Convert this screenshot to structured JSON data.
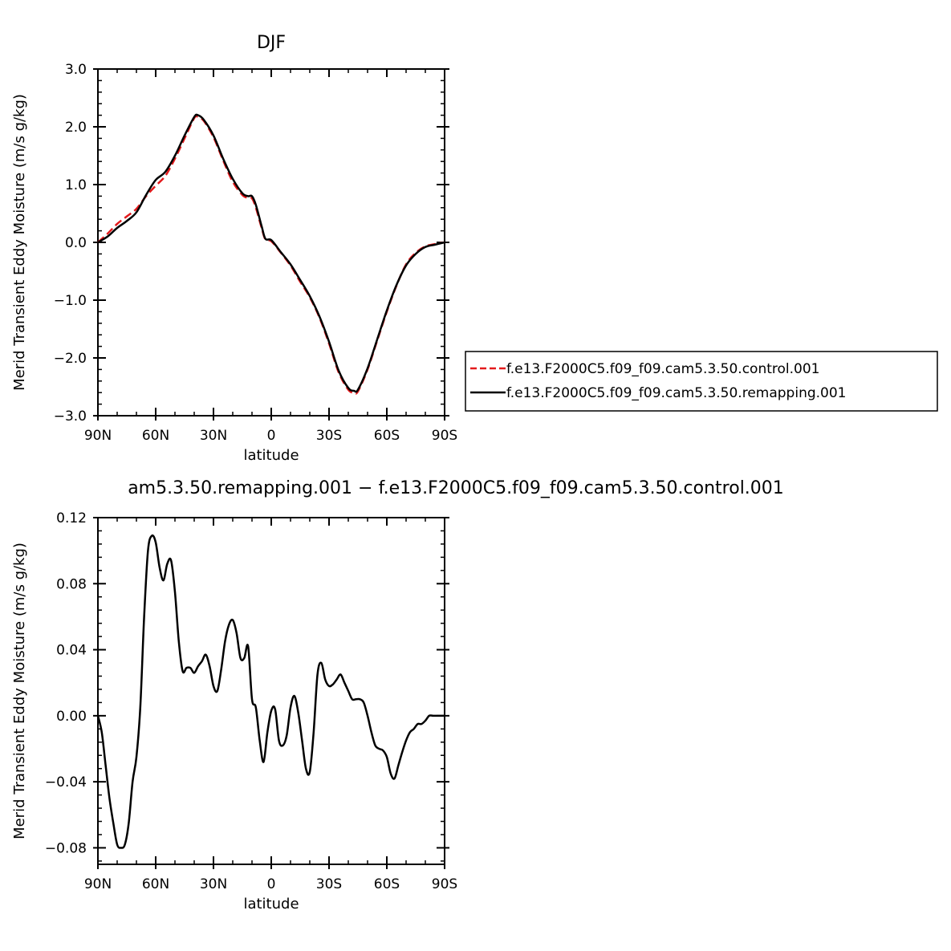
{
  "chart_data": [
    {
      "type": "line",
      "title": "DJF",
      "xlabel": "latitude",
      "ylabel": "Merid Transient Eddy Moisture (m/s g/kg)",
      "xlim": [
        90,
        -90
      ],
      "ylim": [
        -3.0,
        3.0
      ],
      "xticks": [
        90,
        60,
        30,
        0,
        -30,
        -60,
        -90
      ],
      "xtick_labels": [
        "90N",
        "60N",
        "30N",
        "0",
        "30S",
        "60S",
        "90S"
      ],
      "yticks": [
        -3.0,
        -2.0,
        -1.0,
        0.0,
        1.0,
        2.0,
        3.0
      ],
      "ytick_labels": [
        "−3.0",
        "−2.0",
        "−1.0",
        "0.0",
        "1.0",
        "2.0",
        "3.0"
      ],
      "grid": false,
      "legend_position": "right",
      "series": [
        {
          "name": "f.e13.F2000C5.f09_f09.cam5.3.50.control.001",
          "color": "#e31a1c",
          "dash": "dashed",
          "x": [
            90,
            85,
            80,
            75,
            70,
            65,
            60,
            55,
            50,
            45,
            40,
            38,
            35,
            30,
            25,
            20,
            15,
            12,
            10,
            8,
            5,
            3,
            0,
            -5,
            -10,
            -15,
            -20,
            -25,
            -30,
            -35,
            -40,
            -43,
            -45,
            -50,
            -55,
            -60,
            -65,
            -70,
            -75,
            -80,
            -85,
            -90
          ],
          "y": [
            0.0,
            0.15,
            0.32,
            0.45,
            0.58,
            0.8,
            0.98,
            1.15,
            1.45,
            1.8,
            2.15,
            2.17,
            2.1,
            1.82,
            1.42,
            1.05,
            0.82,
            0.77,
            0.76,
            0.6,
            0.25,
            0.05,
            0.02,
            -0.18,
            -0.4,
            -0.68,
            -0.95,
            -1.3,
            -1.75,
            -2.25,
            -2.55,
            -2.6,
            -2.58,
            -2.2,
            -1.7,
            -1.2,
            -0.75,
            -0.38,
            -0.18,
            -0.07,
            -0.03,
            0.0
          ]
        },
        {
          "name": "f.e13.F2000C5.f09_f09.cam5.3.50.remapping.001",
          "color": "#000000",
          "dash": "solid",
          "x": [
            90,
            85,
            80,
            75,
            70,
            65,
            60,
            55,
            50,
            45,
            40,
            38,
            35,
            30,
            25,
            20,
            15,
            12,
            10,
            8,
            5,
            3,
            0,
            -5,
            -10,
            -15,
            -20,
            -25,
            -30,
            -35,
            -40,
            -43,
            -45,
            -50,
            -55,
            -60,
            -65,
            -70,
            -75,
            -80,
            -85,
            -90
          ],
          "y": [
            0.0,
            0.1,
            0.25,
            0.37,
            0.52,
            0.82,
            1.08,
            1.22,
            1.5,
            1.85,
            2.17,
            2.2,
            2.12,
            1.85,
            1.45,
            1.1,
            0.85,
            0.8,
            0.8,
            0.65,
            0.28,
            0.06,
            0.04,
            -0.17,
            -0.38,
            -0.65,
            -0.93,
            -1.28,
            -1.72,
            -2.22,
            -2.52,
            -2.57,
            -2.55,
            -2.18,
            -1.68,
            -1.18,
            -0.74,
            -0.4,
            -0.2,
            -0.08,
            -0.04,
            0.0
          ]
        }
      ]
    },
    {
      "type": "line",
      "title": "am5.3.50.remapping.001 − f.e13.F2000C5.f09_f09.cam5.3.50.control.001",
      "xlabel": "latitude",
      "ylabel": "Merid Transient Eddy Moisture (m/s g/kg)",
      "xlim": [
        90,
        -90
      ],
      "ylim": [
        -0.09,
        0.12
      ],
      "xticks": [
        90,
        60,
        30,
        0,
        -30,
        -60,
        -90
      ],
      "xtick_labels": [
        "90N",
        "60N",
        "30N",
        "0",
        "30S",
        "60S",
        "90S"
      ],
      "yticks": [
        -0.08,
        -0.04,
        0.0,
        0.04,
        0.08,
        0.12
      ],
      "ytick_labels": [
        "−0.08",
        "−0.04",
        "0.00",
        "0.04",
        "0.08",
        "0.12"
      ],
      "grid": false,
      "series": [
        {
          "color": "#000000",
          "dash": "solid",
          "x": [
            90,
            88,
            86,
            84,
            82,
            80,
            78,
            76,
            74,
            72,
            70,
            68,
            66,
            64,
            62,
            60,
            58,
            56,
            54,
            52,
            50,
            48,
            46,
            44,
            42,
            40,
            38,
            36,
            34,
            32,
            30,
            28,
            26,
            24,
            22,
            20,
            18,
            16,
            14,
            12,
            10,
            8,
            6,
            4,
            2,
            0,
            -2,
            -4,
            -6,
            -8,
            -10,
            -12,
            -14,
            -16,
            -18,
            -20,
            -22,
            -24,
            -26,
            -28,
            -30,
            -32,
            -34,
            -36,
            -38,
            -40,
            -42,
            -44,
            -46,
            -48,
            -50,
            -52,
            -54,
            -56,
            -58,
            -60,
            -62,
            -64,
            -66,
            -68,
            -70,
            -72,
            -74,
            -76,
            -78,
            -80,
            -82,
            -84,
            -86,
            -88,
            -90
          ],
          "y": [
            0.0,
            -0.01,
            -0.03,
            -0.05,
            -0.065,
            -0.078,
            -0.08,
            -0.078,
            -0.065,
            -0.04,
            -0.025,
            0.005,
            0.06,
            0.1,
            0.109,
            0.105,
            0.09,
            0.082,
            0.092,
            0.094,
            0.075,
            0.045,
            0.027,
            0.029,
            0.029,
            0.026,
            0.03,
            0.033,
            0.037,
            0.03,
            0.018,
            0.015,
            0.028,
            0.045,
            0.055,
            0.058,
            0.05,
            0.035,
            0.035,
            0.042,
            0.01,
            0.005,
            -0.015,
            -0.028,
            -0.01,
            0.003,
            0.004,
            -0.015,
            -0.018,
            -0.012,
            0.005,
            0.012,
            0.002,
            -0.015,
            -0.032,
            -0.034,
            -0.01,
            0.025,
            0.032,
            0.022,
            0.018,
            0.019,
            0.022,
            0.025,
            0.02,
            0.015,
            0.01,
            0.01,
            0.01,
            0.008,
            0.0,
            -0.01,
            -0.018,
            -0.02,
            -0.021,
            -0.025,
            -0.035,
            -0.038,
            -0.03,
            -0.022,
            -0.015,
            -0.01,
            -0.008,
            -0.005,
            -0.005,
            -0.003,
            0.0,
            0.0,
            0.0,
            0.0,
            0.0
          ]
        }
      ]
    }
  ]
}
